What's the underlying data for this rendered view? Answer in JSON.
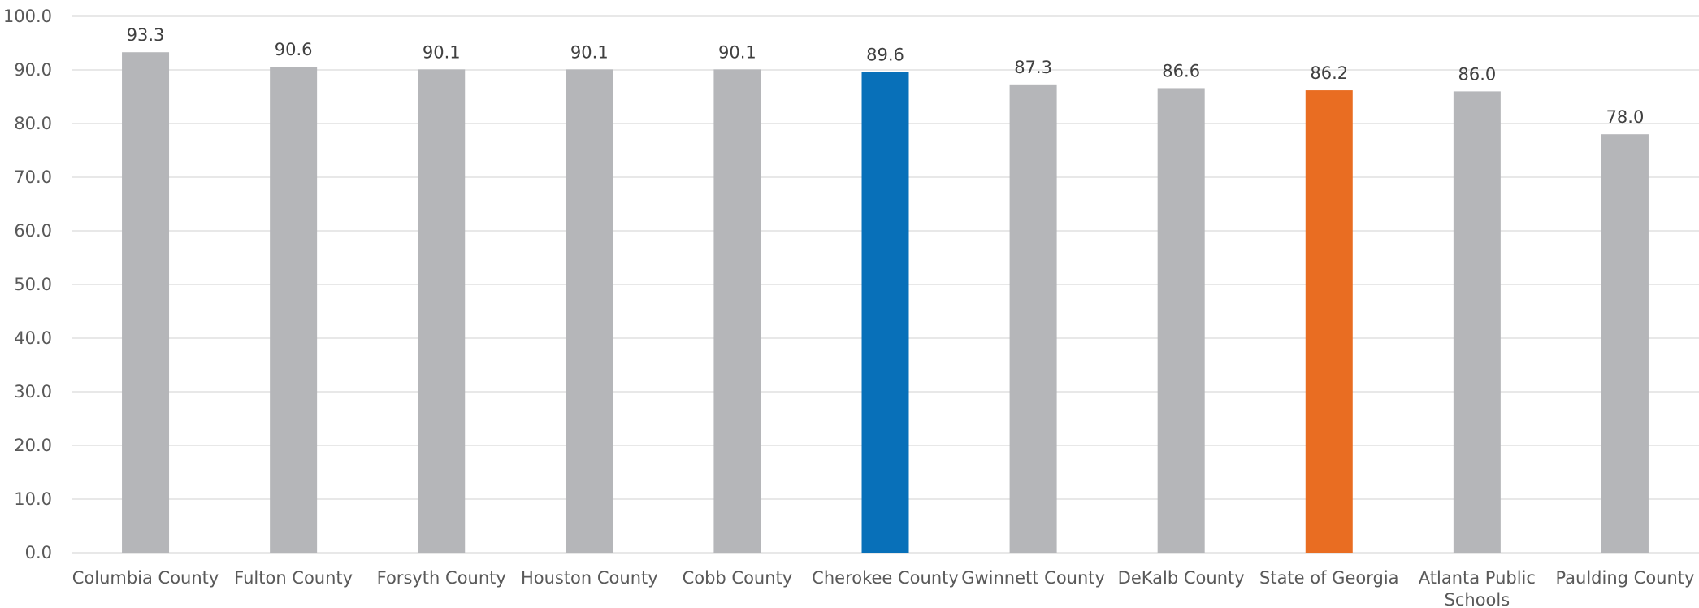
{
  "chart_data": {
    "type": "bar",
    "title": "",
    "xlabel": "",
    "ylabel": "",
    "ylim": [
      0,
      100
    ],
    "ytick_step": 10,
    "ytick_format": "one-decimal",
    "grid": true,
    "legend": "none",
    "categories": [
      [
        "Columbia County"
      ],
      [
        "Fulton County"
      ],
      [
        "Forsyth County"
      ],
      [
        "Houston County"
      ],
      [
        "Cobb County"
      ],
      [
        "Cherokee County"
      ],
      [
        "Gwinnett County"
      ],
      [
        "DeKalb County"
      ],
      [
        "State of Georgia"
      ],
      [
        "Atlanta Public",
        "Schools"
      ],
      [
        "Paulding County"
      ]
    ],
    "values": [
      93.3,
      90.6,
      90.1,
      90.1,
      90.1,
      89.6,
      87.3,
      86.6,
      86.2,
      86.0,
      78.0
    ],
    "data_labels": [
      "93.3",
      "90.6",
      "90.1",
      "90.1",
      "90.1",
      "89.6",
      "87.3",
      "86.6",
      "86.2",
      "86.0",
      "78.0"
    ],
    "colors": {
      "default": "#b5b6b9",
      "highlight_primary": "#0870b9",
      "highlight_secondary": "#e96d22"
    },
    "bar_color_keys": [
      "default",
      "default",
      "default",
      "default",
      "default",
      "highlight_primary",
      "default",
      "default",
      "highlight_secondary",
      "default",
      "default"
    ]
  }
}
